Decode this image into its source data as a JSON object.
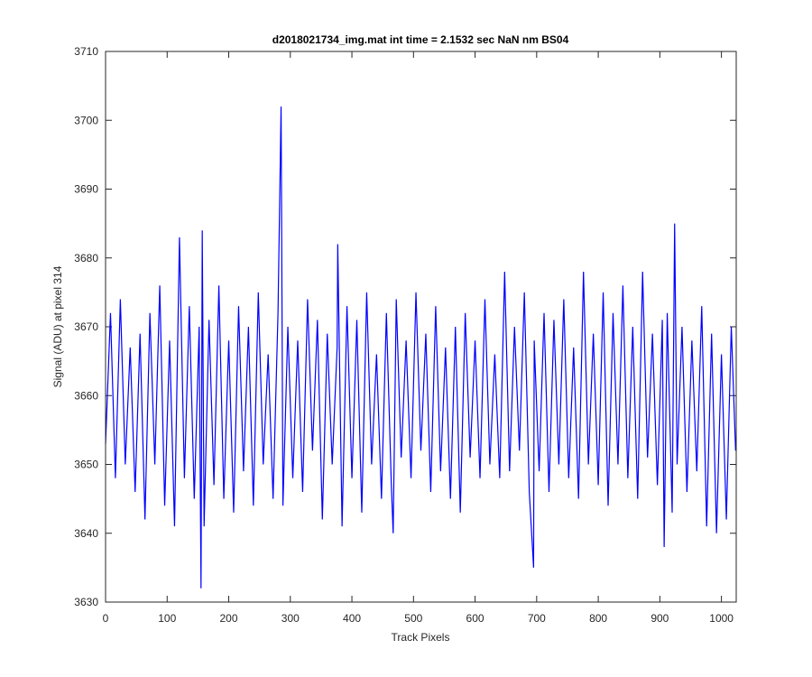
{
  "chart_data": {
    "type": "line",
    "title": "d2018021734_img.mat int time = 2.1532 sec  NaN nm BS04",
    "xlabel": "Track Pixels",
    "ylabel": "Signal (ADU) at pixel 314",
    "xlim": [
      0,
      1024
    ],
    "ylim": [
      3630,
      3710
    ],
    "xticks": [
      0,
      100,
      200,
      300,
      400,
      500,
      600,
      700,
      800,
      900,
      1000
    ],
    "yticks": [
      3630,
      3640,
      3650,
      3660,
      3670,
      3680,
      3690,
      3700,
      3710
    ],
    "grid": false,
    "series": [
      {
        "name": "signal",
        "color": "#0000ff",
        "x": [
          0,
          8,
          16,
          24,
          32,
          40,
          48,
          56,
          64,
          72,
          80,
          88,
          96,
          104,
          112,
          120,
          128,
          136,
          144,
          152,
          155,
          157,
          160,
          168,
          176,
          184,
          192,
          200,
          208,
          216,
          224,
          232,
          240,
          248,
          256,
          264,
          272,
          280,
          285,
          288,
          296,
          304,
          312,
          320,
          328,
          336,
          344,
          352,
          360,
          368,
          376,
          377,
          384,
          392,
          400,
          408,
          416,
          424,
          432,
          440,
          448,
          456,
          464,
          467,
          472,
          480,
          488,
          496,
          504,
          512,
          520,
          528,
          536,
          544,
          552,
          560,
          568,
          576,
          584,
          592,
          600,
          608,
          616,
          624,
          632,
          640,
          648,
          656,
          664,
          672,
          680,
          688,
          695,
          696,
          704,
          712,
          720,
          728,
          736,
          744,
          752,
          760,
          768,
          776,
          784,
          792,
          800,
          808,
          816,
          824,
          832,
          840,
          848,
          856,
          864,
          872,
          880,
          888,
          896,
          904,
          907,
          912,
          920,
          924,
          928,
          936,
          944,
          952,
          960,
          968,
          976,
          984,
          992,
          1000,
          1008,
          1016,
          1023
        ],
        "values": [
          3653,
          3672,
          3648,
          3674,
          3650,
          3667,
          3646,
          3669,
          3642,
          3672,
          3650,
          3676,
          3644,
          3668,
          3641,
          3683,
          3648,
          3673,
          3645,
          3670,
          3632,
          3684,
          3641,
          3671,
          3647,
          3676,
          3645,
          3668,
          3643,
          3673,
          3649,
          3670,
          3644,
          3675,
          3650,
          3666,
          3645,
          3672,
          3702,
          3644,
          3670,
          3648,
          3668,
          3646,
          3674,
          3652,
          3671,
          3642,
          3669,
          3650,
          3667,
          3682,
          3641,
          3673,
          3648,
          3671,
          3643,
          3675,
          3650,
          3666,
          3645,
          3672,
          3647,
          3640,
          3674,
          3651,
          3668,
          3648,
          3675,
          3652,
          3669,
          3646,
          3673,
          3649,
          3667,
          3645,
          3670,
          3643,
          3672,
          3651,
          3668,
          3648,
          3674,
          3650,
          3666,
          3648,
          3678,
          3649,
          3670,
          3652,
          3675,
          3646,
          3635,
          3668,
          3649,
          3672,
          3646,
          3671,
          3650,
          3674,
          3648,
          3667,
          3645,
          3678,
          3650,
          3669,
          3647,
          3675,
          3644,
          3672,
          3650,
          3676,
          3648,
          3670,
          3645,
          3678,
          3651,
          3669,
          3647,
          3671,
          3638,
          3672,
          3643,
          3685,
          3650,
          3670,
          3646,
          3668,
          3649,
          3673,
          3641,
          3669,
          3640,
          3666,
          3642,
          3670,
          3652
        ]
      }
    ]
  }
}
